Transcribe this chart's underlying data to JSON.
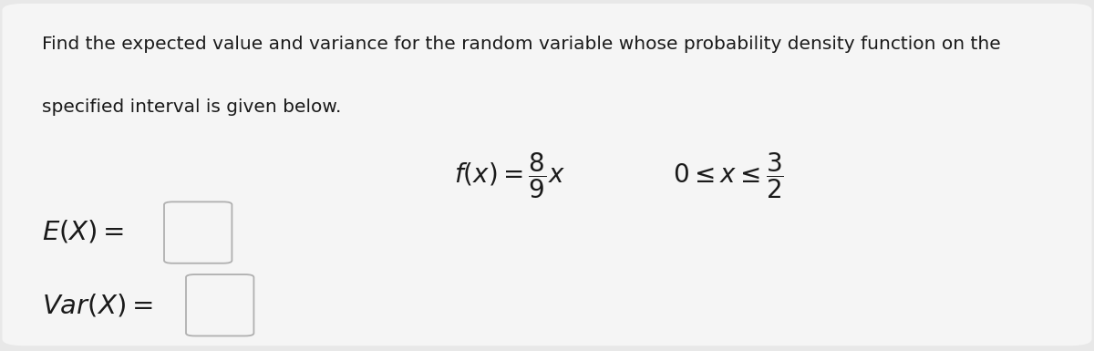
{
  "background_color": "#e8e8e8",
  "card_color": "#f5f5f5",
  "text_color": "#1a1a1a",
  "box_edge_color": "#b0b0b0",
  "title_line1": "Find the expected value and variance for the random variable whose probability density function on the",
  "title_line2": "specified interval is given below.",
  "font_size_title": 14.5,
  "font_size_formula": 20,
  "font_size_labels": 20
}
